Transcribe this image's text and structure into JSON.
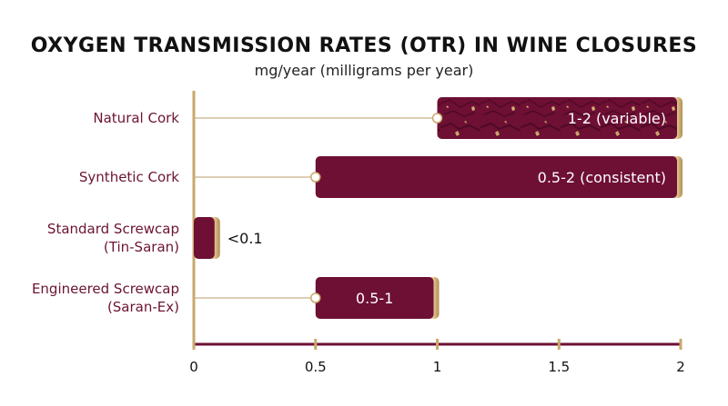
{
  "chart_data": {
    "type": "bar",
    "orientation": "horizontal",
    "title": "OXYGEN TRANSMISSION RATES (OTR) IN WINE CLOSURES",
    "subtitle": "mg/year (milligrams per year)",
    "categories": [
      [
        "Natural Cork"
      ],
      [
        "Synthetic Cork"
      ],
      [
        "Standard Screwcap",
        "(Tin-Saran)"
      ],
      [
        "Engineered Screwcap",
        "(Saran-Ex)"
      ]
    ],
    "ranges": [
      [
        1,
        2
      ],
      [
        0.5,
        2
      ],
      [
        0,
        0.1
      ],
      [
        0.5,
        1
      ]
    ],
    "value_labels": [
      "1-2 (variable)",
      "0.5-2 (consistent)",
      "<0.1",
      "0.5-1"
    ],
    "xlim": [
      0,
      2
    ],
    "xticks": [
      0,
      0.5,
      1,
      1.5,
      2
    ],
    "tick_labels": [
      "0",
      "0.5",
      "1",
      "1.5",
      "2"
    ],
    "grid": false,
    "colors": {
      "bar": "#6e0f34",
      "accent": "#c9a86a",
      "label": "#6b1431",
      "axis": "#6e0f34"
    }
  }
}
